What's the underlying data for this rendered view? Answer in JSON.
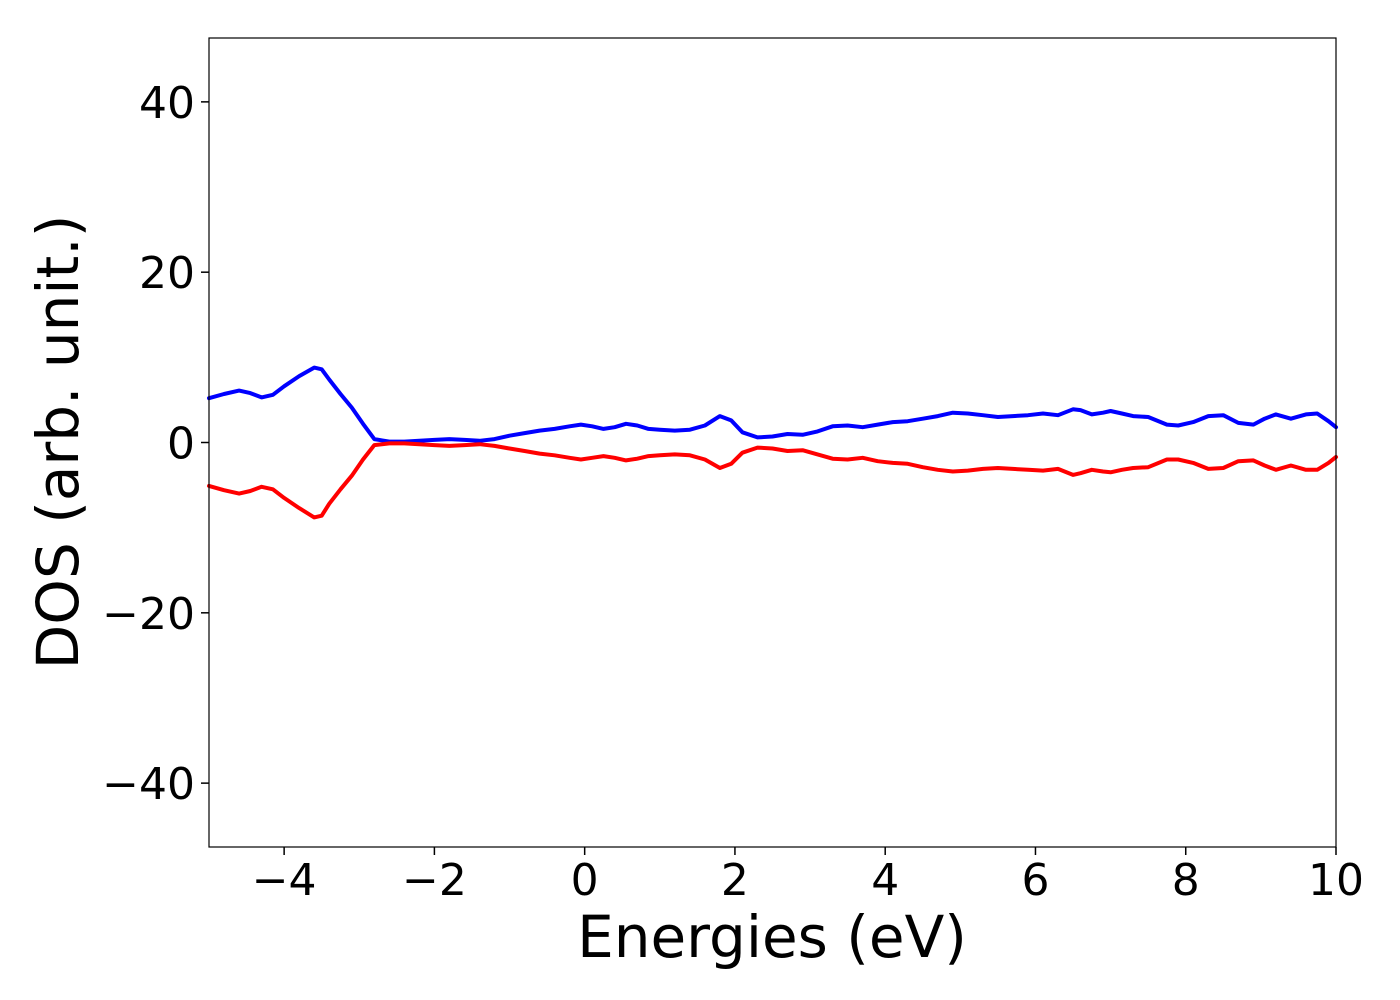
{
  "chart_data": {
    "type": "line",
    "title": "",
    "xlabel": "Energies (eV)",
    "ylabel": "DOS (arb. unit.)",
    "xlim": [
      -5,
      10
    ],
    "ylim": [
      -47.5,
      47.5
    ],
    "xticks": [
      -4,
      -2,
      0,
      2,
      4,
      6,
      8,
      10
    ],
    "xtick_labels": [
      "−4",
      "−2",
      "0",
      "2",
      "4",
      "6",
      "8",
      "10"
    ],
    "yticks": [
      -40,
      -20,
      0,
      20,
      40
    ],
    "ytick_labels": [
      "−40",
      "−20",
      "0",
      "20",
      "40"
    ],
    "grid": false,
    "legend": "none",
    "series": [
      {
        "color": "#0000ff",
        "x": [
          -5.0,
          -4.8,
          -4.6,
          -4.45,
          -4.3,
          -4.15,
          -4.0,
          -3.8,
          -3.6,
          -3.5,
          -3.4,
          -3.25,
          -3.1,
          -2.95,
          -2.8,
          -2.6,
          -2.4,
          -2.2,
          -2.0,
          -1.8,
          -1.6,
          -1.4,
          -1.2,
          -1.0,
          -0.8,
          -0.6,
          -0.4,
          -0.2,
          -0.05,
          0.1,
          0.25,
          0.4,
          0.55,
          0.7,
          0.85,
          1.0,
          1.2,
          1.4,
          1.6,
          1.8,
          1.95,
          2.1,
          2.3,
          2.5,
          2.7,
          2.9,
          3.1,
          3.3,
          3.5,
          3.7,
          3.9,
          4.1,
          4.3,
          4.5,
          4.7,
          4.9,
          5.1,
          5.3,
          5.5,
          5.7,
          5.9,
          6.1,
          6.3,
          6.5,
          6.6,
          6.75,
          6.9,
          7.0,
          7.15,
          7.3,
          7.5,
          7.75,
          7.9,
          8.1,
          8.3,
          8.5,
          8.7,
          8.9,
          9.05,
          9.2,
          9.4,
          9.6,
          9.75,
          9.9,
          10.0
        ],
        "values": [
          5.2,
          5.7,
          6.1,
          5.8,
          5.3,
          5.6,
          6.6,
          7.8,
          8.8,
          8.6,
          7.4,
          5.7,
          4.1,
          2.2,
          0.4,
          0.1,
          0.1,
          0.2,
          0.3,
          0.4,
          0.3,
          0.2,
          0.4,
          0.8,
          1.1,
          1.4,
          1.6,
          1.9,
          2.1,
          1.9,
          1.6,
          1.8,
          2.2,
          2.0,
          1.6,
          1.5,
          1.4,
          1.5,
          2.0,
          3.1,
          2.6,
          1.2,
          0.6,
          0.7,
          1.0,
          0.9,
          1.3,
          1.9,
          2.0,
          1.8,
          2.1,
          2.4,
          2.5,
          2.8,
          3.1,
          3.5,
          3.4,
          3.2,
          3.0,
          3.1,
          3.2,
          3.4,
          3.2,
          3.9,
          3.8,
          3.3,
          3.5,
          3.7,
          3.4,
          3.1,
          3.0,
          2.1,
          2.0,
          2.4,
          3.1,
          3.2,
          2.3,
          2.1,
          2.8,
          3.3,
          2.8,
          3.3,
          3.4,
          2.5,
          1.8
        ]
      },
      {
        "color": "#ff0000",
        "x": [
          -5.0,
          -4.8,
          -4.6,
          -4.45,
          -4.3,
          -4.15,
          -4.0,
          -3.8,
          -3.6,
          -3.5,
          -3.4,
          -3.25,
          -3.1,
          -2.95,
          -2.8,
          -2.6,
          -2.4,
          -2.2,
          -2.0,
          -1.8,
          -1.6,
          -1.4,
          -1.2,
          -1.0,
          -0.8,
          -0.6,
          -0.4,
          -0.2,
          -0.05,
          0.1,
          0.25,
          0.4,
          0.55,
          0.7,
          0.85,
          1.0,
          1.2,
          1.4,
          1.6,
          1.8,
          1.95,
          2.1,
          2.3,
          2.5,
          2.7,
          2.9,
          3.1,
          3.3,
          3.5,
          3.7,
          3.9,
          4.1,
          4.3,
          4.5,
          4.7,
          4.9,
          5.1,
          5.3,
          5.5,
          5.7,
          5.9,
          6.1,
          6.3,
          6.5,
          6.6,
          6.75,
          6.9,
          7.0,
          7.15,
          7.3,
          7.5,
          7.75,
          7.9,
          8.1,
          8.3,
          8.5,
          8.7,
          8.9,
          9.05,
          9.2,
          9.4,
          9.6,
          9.75,
          9.9,
          10.0
        ],
        "values": [
          -5.1,
          -5.6,
          -6.0,
          -5.7,
          -5.2,
          -5.5,
          -6.5,
          -7.7,
          -8.8,
          -8.6,
          -7.2,
          -5.5,
          -3.9,
          -2.0,
          -0.3,
          -0.1,
          -0.1,
          -0.2,
          -0.3,
          -0.4,
          -0.3,
          -0.2,
          -0.4,
          -0.7,
          -1.0,
          -1.3,
          -1.5,
          -1.8,
          -2.0,
          -1.8,
          -1.6,
          -1.8,
          -2.1,
          -1.9,
          -1.6,
          -1.5,
          -1.4,
          -1.5,
          -2.0,
          -3.0,
          -2.5,
          -1.2,
          -0.6,
          -0.7,
          -1.0,
          -0.9,
          -1.4,
          -1.9,
          -2.0,
          -1.8,
          -2.2,
          -2.4,
          -2.5,
          -2.9,
          -3.2,
          -3.4,
          -3.3,
          -3.1,
          -3.0,
          -3.1,
          -3.2,
          -3.3,
          -3.1,
          -3.8,
          -3.6,
          -3.2,
          -3.4,
          -3.5,
          -3.2,
          -3.0,
          -2.9,
          -2.0,
          -2.0,
          -2.4,
          -3.1,
          -3.0,
          -2.2,
          -2.1,
          -2.7,
          -3.2,
          -2.7,
          -3.2,
          -3.2,
          -2.4,
          -1.7
        ]
      }
    ]
  }
}
